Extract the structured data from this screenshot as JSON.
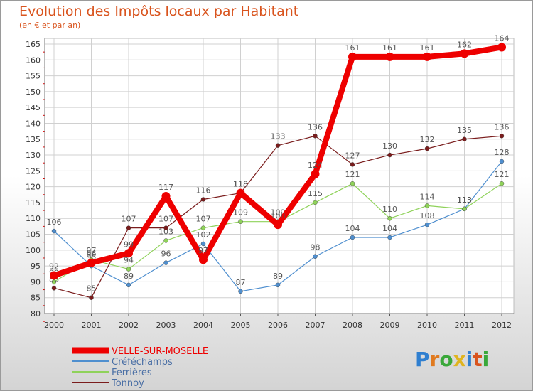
{
  "chart_data": {
    "type": "line",
    "title": "Evolution des Impôts locaux par Habitant",
    "subtitle": "(en € et par an)",
    "xlabel": "",
    "ylabel": "",
    "ylim": [
      80,
      165
    ],
    "yticks": [
      80,
      85,
      90,
      95,
      100,
      105,
      110,
      115,
      120,
      125,
      130,
      135,
      140,
      145,
      150,
      155,
      160,
      165
    ],
    "categories": [
      "2000",
      "2001",
      "2002",
      "2003",
      "2004",
      "2005",
      "2006",
      "2007",
      "2008",
      "2009",
      "2010",
      "2011",
      "2012"
    ],
    "series": [
      {
        "name": "Créféchamps",
        "color": "#4f8fcf",
        "values": [
          106,
          95,
          89,
          96,
          102,
          87,
          89,
          98,
          104,
          104,
          108,
          113,
          128
        ]
      },
      {
        "name": "Ferrières",
        "color": "#8fd25a",
        "values": [
          90,
          97,
          94,
          103,
          107,
          109,
          109,
          115,
          121,
          110,
          114,
          113,
          121
        ]
      },
      {
        "name": "Tonnoy",
        "color": "#7a1c1c",
        "values": [
          88,
          85,
          107,
          107,
          116,
          118,
          133,
          136,
          127,
          130,
          132,
          135,
          136
        ]
      },
      {
        "name": "VELLE-SUR-MOSELLE",
        "color": "#ee0000",
        "values": [
          92,
          96,
          99,
          117,
          97,
          118,
          108,
          124,
          161,
          161,
          161,
          162,
          164
        ]
      }
    ],
    "legend": [
      {
        "name": "VELLE-SUR-MOSELLE",
        "color": "#ee0000"
      },
      {
        "name": "Créféchamps",
        "color": "#4f8fcf"
      },
      {
        "name": "Ferrières",
        "color": "#8fd25a"
      },
      {
        "name": "Tonnoy",
        "color": "#7a1c1c"
      }
    ],
    "legend_position": "bottom-left"
  },
  "logo": {
    "letters": [
      "P",
      "r",
      "o",
      "x",
      "i",
      "t",
      "i"
    ],
    "colors": [
      "#2f7fd0",
      "#e07a1f",
      "#3aa83a",
      "#e0b41f",
      "#2f7fd0",
      "#d9541e",
      "#3aa83a"
    ]
  }
}
